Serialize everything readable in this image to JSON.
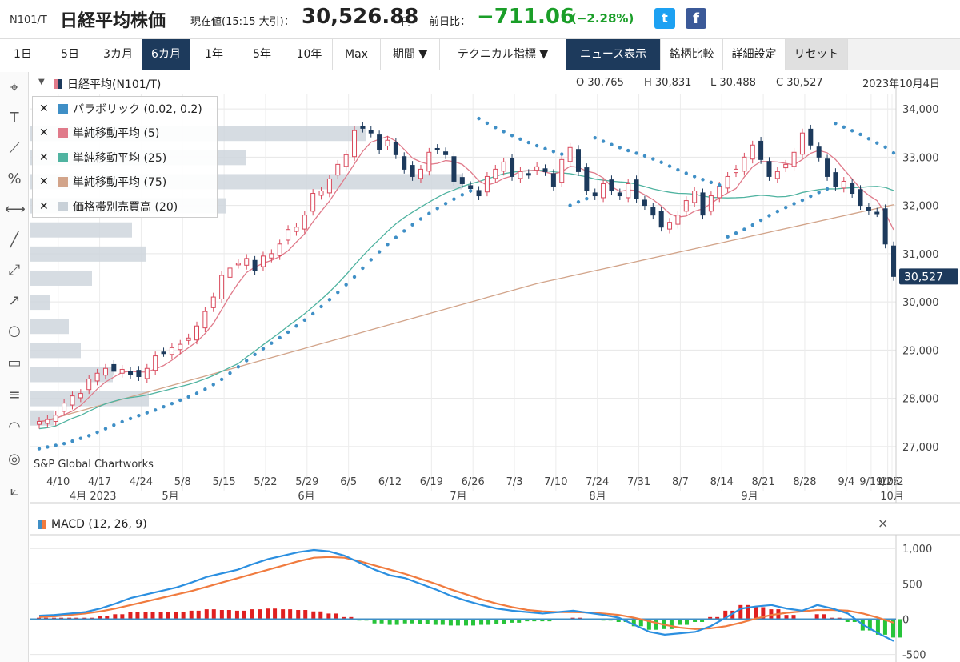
{
  "header": {
    "ticker": "N101/T",
    "name": "日経平均株価",
    "current_label": "現在値(15:15 大引)：",
    "current_value": "30,526.88",
    "current_unit": "円",
    "change_label": "前日比：",
    "change_value": "−711.06",
    "change_pct": "(−2.28%)",
    "twitter_icon": "twitter-icon",
    "facebook_icon": "facebook-icon"
  },
  "toolbar": {
    "buttons": [
      "1日",
      "5日",
      "3カ月",
      "6カ月",
      "1年",
      "5年",
      "10年",
      "Max",
      "期間 ▼",
      "テクニカル指標 ▼",
      "ニュース表示",
      "銘柄比較",
      "詳細設定",
      "リセット"
    ],
    "active": "6カ月"
  },
  "chart": {
    "series_name": "日経平均(N101/T)",
    "ohlc": {
      "o": "O 30,765",
      "h": "H 30,831",
      "l": "L 30,488",
      "c": "C 30,527"
    },
    "date": "2023年10月4日",
    "last_price_tag": "30,527",
    "credit": "S&P Global Chartworks",
    "legend": [
      {
        "label": "パラボリック (0.02, 0.2)",
        "color": "#3f8fc6"
      },
      {
        "label": "単純移動平均 (5)",
        "color": "#e07a8a"
      },
      {
        "label": "単純移動平均 (25)",
        "color": "#4fb3a0"
      },
      {
        "label": "単純移動平均 (75)",
        "color": "#d2a48a"
      },
      {
        "label": "価格帯別売買高 (20)",
        "color": "#c9d1d8"
      }
    ],
    "macd_title": "MACD (12, 26, 9)",
    "macd_close": "×"
  },
  "chart_data": {
    "type": "candlestick",
    "ylim": [
      26500,
      34300
    ],
    "y_ticks": [
      "34,000",
      "33,000",
      "32,000",
      "31,000",
      "30,000",
      "29,000",
      "28,000",
      "27,000"
    ],
    "x_ticks": [
      "4/10",
      "4/17",
      "4/24",
      "5/8",
      "5/15",
      "5/22",
      "5/29",
      "6/5",
      "6/12",
      "6/19",
      "6/26",
      "7/3",
      "7/10",
      "7/24",
      "7/31",
      "8/7",
      "8/14",
      "8/21",
      "8/28",
      "9/4",
      "9/11",
      "9/25",
      "10/2"
    ],
    "month_labels": [
      "4月 2023",
      "5月",
      "6月",
      "7月",
      "8月",
      "9月",
      "10月"
    ],
    "closes": [
      27520,
      27560,
      27650,
      27900,
      28050,
      28100,
      28400,
      28520,
      28620,
      28560,
      28600,
      28500,
      28450,
      28620,
      28880,
      28950,
      29050,
      29120,
      29250,
      29500,
      29800,
      30100,
      30550,
      30700,
      30800,
      30900,
      30650,
      30950,
      31000,
      31200,
      31500,
      31550,
      31800,
      32250,
      32300,
      32550,
      32850,
      33050,
      33550,
      33600,
      33500,
      33150,
      33350,
      33050,
      32750,
      32600,
      32750,
      33100,
      33150,
      33050,
      32500,
      32450,
      32350,
      32200,
      32600,
      32750,
      32900,
      32600,
      32700,
      32650,
      32800,
      32700,
      32400,
      32950,
      33200,
      32700,
      32300,
      32200,
      32450,
      32300,
      32200,
      32450,
      32150,
      32000,
      31800,
      31550,
      31650,
      31800,
      32100,
      32300,
      31800,
      32200,
      32400,
      32600,
      32750,
      33000,
      33250,
      32950,
      32600,
      32700,
      32850,
      33100,
      33500,
      33250,
      33000,
      32600,
      32400,
      32500,
      32250,
      32000,
      31900,
      31850,
      31200,
      30527
    ],
    "macd": [
      50,
      60,
      80,
      100,
      150,
      220,
      300,
      350,
      400,
      450,
      520,
      600,
      650,
      700,
      780,
      850,
      900,
      950,
      980,
      960,
      900,
      800,
      700,
      620,
      580,
      500,
      420,
      330,
      260,
      200,
      150,
      120,
      100,
      80,
      100,
      120,
      90,
      60,
      20,
      -80,
      -180,
      -220,
      -200,
      -180,
      -100,
      20,
      150,
      180,
      200,
      150,
      120,
      200,
      150,
      80,
      -80,
      -200,
      -310
    ],
    "signal": [
      30,
      40,
      60,
      80,
      110,
      150,
      200,
      250,
      300,
      350,
      400,
      460,
      520,
      580,
      640,
      700,
      760,
      820,
      870,
      880,
      870,
      820,
      760,
      700,
      640,
      570,
      500,
      420,
      350,
      280,
      220,
      170,
      130,
      110,
      100,
      100,
      95,
      80,
      60,
      20,
      -30,
      -80,
      -120,
      -140,
      -130,
      -100,
      -50,
      10,
      60,
      90,
      110,
      130,
      130,
      120,
      80,
      20,
      -50
    ],
    "macd_ylim": [
      -550,
      1150
    ],
    "macd_ticks": [
      "1,000",
      "500",
      "0",
      "-500"
    ]
  }
}
